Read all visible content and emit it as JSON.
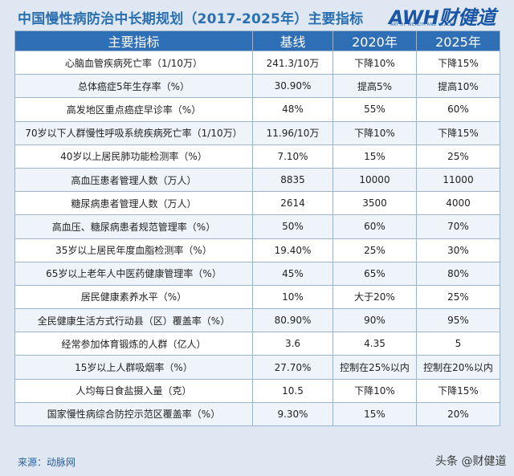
{
  "title": "中国慢性病防治中长期规划（2017-2025年）主要指标",
  "logo": {
    "main": "AWH财健道",
    "sub": "ART OF WEALTH AND HEALTH",
    "brand_color": "#1b56a6"
  },
  "table": {
    "headers": [
      "主要指标",
      "基线",
      "2020年",
      "2025年"
    ],
    "rows": [
      [
        "心脑血管疾病死亡率（1/10万）",
        "241.3/10万",
        "下降10%",
        "下降15%"
      ],
      [
        "总体癌症5年生存率（%）",
        "30.90%",
        "提高5%",
        "提高10%"
      ],
      [
        "高发地区重点癌症早诊率（%）",
        "48%",
        "55%",
        "60%"
      ],
      [
        "70岁以下人群慢性呼吸系统疾病死亡率（1/10万）",
        "11.96/10万",
        "下降10%",
        "下降15%"
      ],
      [
        "40岁以上居民肺功能检测率（%）",
        "7.10%",
        "15%",
        "25%"
      ],
      [
        "高血压患者管理人数（万人）",
        "8835",
        "10000",
        "11000"
      ],
      [
        "糖尿病患者管理人数（万人）",
        "2614",
        "3500",
        "4000"
      ],
      [
        "高血压、糖尿病患者规范管理率（%）",
        "50%",
        "60%",
        "70%"
      ],
      [
        "35岁以上居民年度血脂检测率（%）",
        "19.40%",
        "25%",
        "30%"
      ],
      [
        "65岁以上老年人中医药健康管理率（%）",
        "45%",
        "65%",
        "80%"
      ],
      [
        "居民健康素养水平（%）",
        "10%",
        "大于20%",
        "25%"
      ],
      [
        "全民健康生活方式行动县（区）覆盖率（%）",
        "80.90%",
        "90%",
        "95%"
      ],
      [
        "经常参加体育锻炼的人群（亿人）",
        "3.6",
        "4.35",
        "5"
      ],
      [
        "15岁以上人群吸烟率（%）",
        "27.70%",
        "控制在25%以内",
        "控制在20%以内"
      ],
      [
        "人均每日食盐摄入量（克）",
        "10.5",
        "下降10%",
        "下降15%"
      ],
      [
        "国家慢性病综合防控示范区覆盖率（%）",
        "9.30%",
        "15%",
        "20%"
      ]
    ]
  },
  "source": "来源：动脉网",
  "watermark": "头条 @财健道",
  "colors": {
    "header_bg": "#2f6fb5",
    "title": "#2a6fb0",
    "page_bg": "#dfe8f2"
  }
}
